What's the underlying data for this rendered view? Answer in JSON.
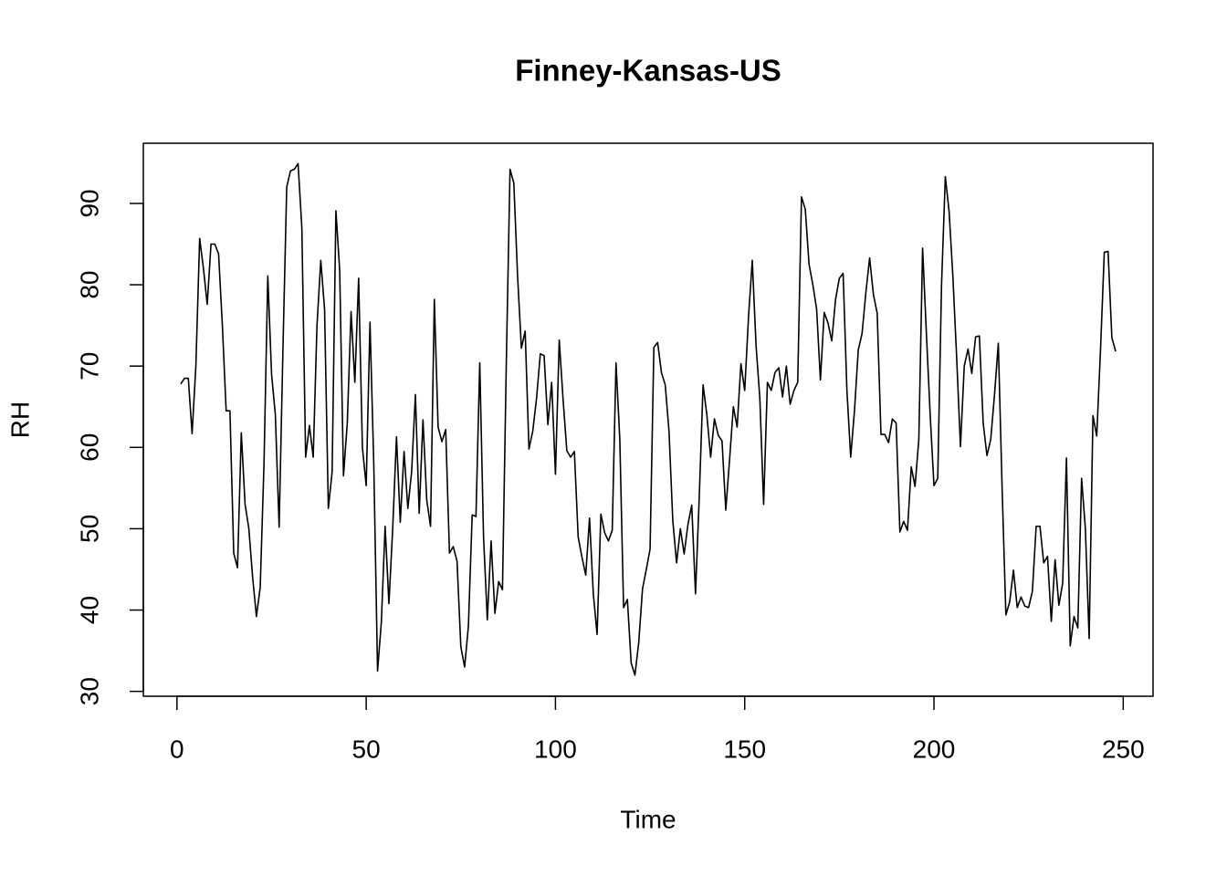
{
  "chart_data": {
    "type": "line",
    "title": "Finney-Kansas-US",
    "xlabel": "Time",
    "ylabel": "RH",
    "color": "#000000",
    "x": [
      1,
      2,
      3,
      4,
      5,
      6,
      7,
      8,
      9,
      10,
      11,
      12,
      13,
      14,
      15,
      16,
      17,
      18,
      19,
      20,
      21,
      22,
      23,
      24,
      25,
      26,
      27,
      28,
      29,
      30,
      31,
      32,
      33,
      34,
      35,
      36,
      37,
      38,
      39,
      40,
      41,
      42,
      43,
      44,
      45,
      46,
      47,
      48,
      49,
      50,
      51,
      52,
      53,
      54,
      55,
      56,
      57,
      58,
      59,
      60,
      61,
      62,
      63,
      64,
      65,
      66,
      67,
      68,
      69,
      70,
      71,
      72,
      73,
      74,
      75,
      76,
      77,
      78,
      79,
      80,
      81,
      82,
      83,
      84,
      85,
      86,
      87,
      88,
      89,
      90,
      91,
      92,
      93,
      94,
      95,
      96,
      97,
      98,
      99,
      100,
      101,
      102,
      103,
      104,
      105,
      106,
      107,
      108,
      109,
      110,
      111,
      112,
      113,
      114,
      115,
      116,
      117,
      118,
      119,
      120,
      121,
      122,
      123,
      124,
      125,
      126,
      127,
      128,
      129,
      130,
      131,
      132,
      133,
      134,
      135,
      136,
      137,
      138,
      139,
      140,
      141,
      142,
      143,
      144,
      145,
      146,
      147,
      148,
      149,
      150,
      151,
      152,
      153,
      154,
      155,
      156,
      157,
      158,
      159,
      160,
      161,
      162,
      163,
      164,
      165,
      166,
      167,
      168,
      169,
      170,
      171,
      172,
      173,
      174,
      175,
      176,
      177,
      178,
      179,
      180,
      181,
      182,
      183,
      184,
      185,
      186,
      187,
      188,
      189,
      190,
      191,
      192,
      193,
      194,
      195,
      196,
      197,
      198,
      199,
      200,
      201,
      202,
      203,
      204,
      205,
      206,
      207,
      208,
      209,
      210,
      211,
      212,
      213,
      214,
      215,
      216,
      217,
      218,
      219,
      220,
      221,
      222,
      223,
      224,
      225,
      226,
      227,
      228,
      229,
      230,
      231,
      232,
      233,
      234,
      235,
      236,
      237,
      238,
      239,
      240,
      241,
      242,
      243,
      244,
      245,
      246,
      247,
      248
    ],
    "values": [
      67.8,
      68.5,
      68.5,
      61.7,
      70,
      85.7,
      82,
      77.6,
      85,
      85,
      83.8,
      75,
      64.5,
      64.5,
      47,
      45.2,
      61.8,
      53,
      50,
      44,
      39.2,
      42.8,
      58,
      81.1,
      69,
      64,
      50.2,
      72,
      92,
      94,
      94.2,
      94.9,
      87,
      58.8,
      62.7,
      58.8,
      75,
      83,
      77,
      52.5,
      57,
      89.1,
      81.7,
      56.5,
      63,
      76.7,
      68,
      80.8,
      60,
      55.3,
      75.4,
      58,
      32.5,
      38.5,
      50.3,
      40.8,
      50,
      61.3,
      50.8,
      59.5,
      52.5,
      57,
      66.5,
      51.9,
      63.4,
      53.5,
      50.3,
      78.2,
      62.5,
      60.7,
      62.2,
      47,
      47.8,
      46,
      35.5,
      33,
      38,
      51.7,
      51.5,
      70.4,
      49,
      38.8,
      48.5,
      39.6,
      43.5,
      42.5,
      70,
      94.2,
      92.5,
      81,
      72.2,
      74.3,
      59.8,
      62,
      66,
      71.5,
      71.3,
      62.8,
      68,
      56.7,
      73.2,
      66,
      59.6,
      58.8,
      59.5,
      49,
      46.5,
      44.3,
      51.3,
      42,
      37,
      51.8,
      49.5,
      48.5,
      49.8,
      70.4,
      61,
      40.3,
      41.3,
      33.5,
      32,
      36,
      42.6,
      45,
      47.5,
      72.3,
      72.9,
      69.2,
      67.7,
      62,
      51,
      45.8,
      50,
      46.9,
      50.5,
      52.9,
      42,
      54,
      67.7,
      64,
      58.8,
      63.5,
      61.5,
      60.8,
      52.3,
      58.5,
      65,
      62.5,
      70.3,
      67,
      76,
      83,
      72.5,
      66,
      53,
      68,
      67,
      69.2,
      69.8,
      66.2,
      70,
      65.3,
      67,
      68,
      90.8,
      89.3,
      82.5,
      80,
      77,
      68.3,
      76.6,
      75.3,
      73.1,
      78.2,
      80.8,
      81.4,
      67,
      58.8,
      64.5,
      72,
      74,
      79,
      83.3,
      78.8,
      76.5,
      61.6,
      61.6,
      60.6,
      63.5,
      63,
      49.6,
      50.9,
      49.8,
      57.6,
      55.2,
      61,
      84.5,
      74,
      64,
      55.3,
      56.2,
      80,
      93.3,
      89,
      81,
      71,
      60.1,
      70,
      72.1,
      69.1,
      73.6,
      73.7,
      63,
      59,
      61,
      66.5,
      72.8,
      55,
      39.4,
      41,
      44.9,
      40.3,
      41.6,
      40.5,
      40.3,
      42.3,
      50.3,
      50.3,
      45.8,
      46.6,
      38.6,
      46.2,
      40.6,
      43.3,
      58.7,
      35.6,
      39.2,
      37.8,
      56.2,
      50,
      36.5,
      63.9,
      61.4,
      72,
      84,
      84.1,
      73.5,
      71.8
    ],
    "xlim": [
      -8.88,
      257.88
    ],
    "ylim": [
      29.4,
      97.4
    ],
    "xticks": [
      0,
      50,
      100,
      150,
      200,
      250
    ],
    "yticks": [
      30,
      40,
      50,
      60,
      70,
      80,
      90
    ]
  }
}
